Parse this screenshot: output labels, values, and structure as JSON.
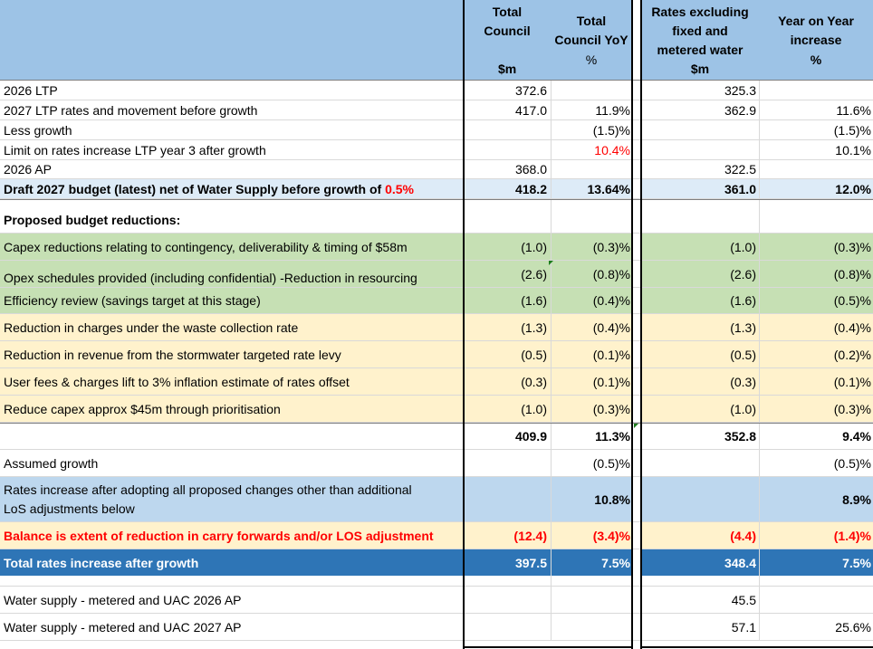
{
  "header": {
    "col1_line1": "Total",
    "col1_line2": "Council",
    "col1_unit": "$m",
    "col2_line1": "Total",
    "col2_line2": "Council YoY",
    "col2_unit": "%",
    "col3_line1": "Rates excluding",
    "col3_line2": "fixed and",
    "col3_line3": "metered water",
    "col3_unit": "$m",
    "col4_line1": "Year on Year",
    "col4_line2": "increase",
    "col4_unit": "%"
  },
  "rows": [
    {
      "label": "2026 LTP",
      "v1": "372.6",
      "v2": "",
      "v3": "325.3",
      "v4": ""
    },
    {
      "label": "2027 LTP rates and movement before growth",
      "v1": "417.0",
      "v2": "11.9%",
      "v3": "362.9",
      "v4": "11.6%"
    },
    {
      "label": "Less growth",
      "v1": "",
      "v2": "(1.5)%",
      "v3": "",
      "v4": "(1.5)%"
    },
    {
      "label": "Limit on rates increase LTP year 3 after growth",
      "v1": "",
      "v2": "10.4%",
      "v3": "",
      "v4": "10.1%"
    },
    {
      "label": "2026 AP",
      "v1": "368.0",
      "v2": "",
      "v3": "322.5",
      "v4": ""
    },
    {
      "label": "Draft 2027 budget (latest) net of Water Supply before growth of ",
      "label_red": "0.5%",
      "v1": "418.2",
      "v2": "13.64%",
      "v3": "361.0",
      "v4": "12.0%"
    },
    {
      "label": "Proposed budget reductions:",
      "v1": "",
      "v2": "",
      "v3": "",
      "v4": ""
    },
    {
      "label": "Capex reductions relating to contingency, deliverability & timing of $58m",
      "v1": "(1.0)",
      "v2": "(0.3)%",
      "v3": "(1.0)",
      "v4": "(0.3)%"
    },
    {
      "label": "Opex schedules provided (including confidential) -Reduction in resourcing",
      "v1": "(2.6)",
      "v2": "(0.8)%",
      "v3": "(2.6)",
      "v4": "(0.8)%"
    },
    {
      "label": "Efficiency review (savings target at this stage)",
      "v1": "(1.6)",
      "v2": "(0.4)%",
      "v3": "(1.6)",
      "v4": "(0.5)%"
    },
    {
      "label": "Reduction in charges under the waste collection rate",
      "v1": "(1.3)",
      "v2": "(0.4)%",
      "v3": "(1.3)",
      "v4": "(0.4)%"
    },
    {
      "label": "Reduction in revenue from the stormwater targeted rate levy",
      "v1": "(0.5)",
      "v2": "(0.1)%",
      "v3": "(0.5)",
      "v4": "(0.2)%"
    },
    {
      "label": "User fees & charges lift to 3% inflation estimate of rates offset",
      "v1": "(0.3)",
      "v2": "(0.1)%",
      "v3": "(0.3)",
      "v4": "(0.1)%"
    },
    {
      "label": "Reduce capex approx $45m through prioritisation",
      "v1": "(1.0)",
      "v2": "(0.3)%",
      "v3": "(1.0)",
      "v4": "(0.3)%"
    },
    {
      "label": "",
      "v1": "409.9",
      "v2": "11.3%",
      "v3": "352.8",
      "v4": "9.4%"
    },
    {
      "label": "Assumed growth",
      "v1": "",
      "v2": "(0.5)%",
      "v3": "",
      "v4": "(0.5)%"
    },
    {
      "label": "Rates increase after adopting all proposed changes other than additional",
      "label_line2": "LoS adjustments below",
      "v1": "",
      "v2": "10.8%",
      "v3": "",
      "v4": "8.9%"
    },
    {
      "label": "Balance is extent of reduction in carry forwards and/or LOS adjustment",
      "v1": "(12.4)",
      "v2": "(3.4)%",
      "v3": "(4.4)",
      "v4": "(1.4)%"
    },
    {
      "label": "Total rates increase after growth",
      "v1": "397.5",
      "v2": "7.5%",
      "v3": "348.4",
      "v4": "7.5%"
    },
    {
      "label": "",
      "v1": "",
      "v2": "",
      "v3": "",
      "v4": ""
    },
    {
      "label": "Water supply - metered and UAC 2026 AP",
      "v1": "",
      "v2": "",
      "v3": "45.5",
      "v4": ""
    },
    {
      "label": "Water supply - metered and UAC 2027 AP",
      "v1": "",
      "v2": "",
      "v3": "57.1",
      "v4": "25.6%"
    }
  ],
  "colors": {
    "header": "#9dc3e6",
    "green": "#c6e0b4",
    "yellow": "#fff2cc",
    "light_blue": "#ddebf7",
    "mid_blue": "#bdd7ee",
    "dark_blue": "#2e75b6",
    "red_text": "#ff0000"
  }
}
